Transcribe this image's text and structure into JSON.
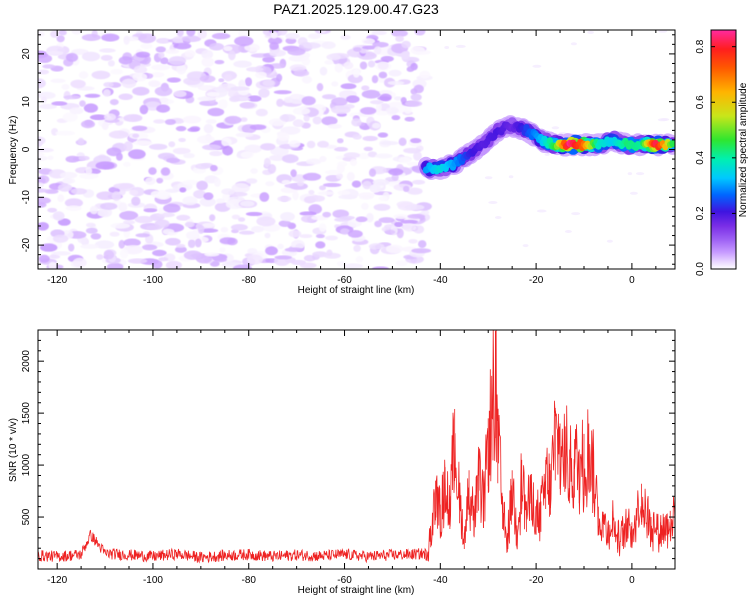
{
  "title": "PAZ1.2025.129.00.47.G23",
  "chart_data": [
    {
      "type": "heatmap",
      "title": "PAZ1.2025.129.00.47.G23",
      "xlabel": "Height of straight line (km)",
      "ylabel": "Frequency (Hz)",
      "xlim": [
        -124,
        9
      ],
      "ylim": [
        -25,
        25
      ],
      "x_ticks": [
        -120,
        -100,
        -80,
        -60,
        -40,
        -20,
        0
      ],
      "y_ticks": [
        -20,
        -10,
        0,
        10,
        20
      ],
      "colorbar": {
        "label": "Normalized spectral amplitude",
        "range": [
          0.0,
          0.86
        ],
        "ticks": [
          0.0,
          0.2,
          0.4,
          0.6,
          0.8
        ],
        "colormap": [
          "#ffffff",
          "#e9d6ff",
          "#c79bff",
          "#a064f5",
          "#7a2ee6",
          "#3f14e0",
          "#0066ff",
          "#00c8ff",
          "#00f0b0",
          "#2fe62f",
          "#c8e61a",
          "#ffb400",
          "#ff5a00",
          "#ff1e1e",
          "#ff2aa0"
        ]
      },
      "noise_region": {
        "x_range": [
          -124,
          -43
        ],
        "y_range": [
          -25,
          25
        ],
        "amplitude_range": [
          0.0,
          0.12
        ]
      },
      "signal_ridge": [
        {
          "x": -43,
          "freq": -4,
          "amp": 0.4
        },
        {
          "x": -40,
          "freq": -4,
          "amp": 0.46
        },
        {
          "x": -37,
          "freq": -3,
          "amp": 0.4
        },
        {
          "x": -34,
          "freq": -1,
          "amp": 0.32
        },
        {
          "x": -31,
          "freq": 1,
          "amp": 0.28
        },
        {
          "x": -28,
          "freq": 4,
          "amp": 0.3
        },
        {
          "x": -25,
          "freq": 5,
          "amp": 0.26
        },
        {
          "x": -22,
          "freq": 4,
          "amp": 0.34
        },
        {
          "x": -19,
          "freq": 2,
          "amp": 0.42
        },
        {
          "x": -16,
          "freq": 1,
          "amp": 0.55
        },
        {
          "x": -13,
          "freq": 1,
          "amp": 0.85
        },
        {
          "x": -10,
          "freq": 1,
          "amp": 0.72
        },
        {
          "x": -7,
          "freq": 1,
          "amp": 0.48
        },
        {
          "x": -4,
          "freq": 2,
          "amp": 0.44
        },
        {
          "x": -1,
          "freq": 1,
          "amp": 0.52
        },
        {
          "x": 2,
          "freq": 1,
          "amp": 0.5
        },
        {
          "x": 5,
          "freq": 1,
          "amp": 0.82
        },
        {
          "x": 9,
          "freq": 1,
          "amp": 0.5
        }
      ]
    },
    {
      "type": "line",
      "xlabel": "Height of straight line (km)",
      "ylabel": "SNR (10 * v/v)",
      "xlim": [
        -124,
        9
      ],
      "ylim": [
        0,
        2300
      ],
      "x_ticks": [
        -120,
        -100,
        -80,
        -60,
        -40,
        -20,
        0
      ],
      "y_ticks": [
        500,
        1000,
        1500,
        2000
      ],
      "grid": false,
      "series": [
        {
          "color": "#ee2222",
          "x": [
            -124,
            -120,
            -115,
            -113,
            -110,
            -105,
            -100,
            -95,
            -90,
            -85,
            -80,
            -75,
            -70,
            -65,
            -60,
            -55,
            -50,
            -46,
            -43,
            -42,
            -41,
            -40,
            -39,
            -38,
            -37,
            -36,
            -35,
            -34,
            -33,
            -32,
            -31,
            -30,
            -29,
            -28.5,
            -28,
            -27,
            -26,
            -25,
            -24,
            -23,
            -22,
            -21,
            -20,
            -19,
            -18,
            -17,
            -16,
            -15,
            -14,
            -13,
            -12,
            -11,
            -10,
            -9,
            -8,
            -7,
            -6,
            -5,
            -4,
            -3,
            -2,
            -1,
            0,
            2,
            4,
            6,
            8,
            9
          ],
          "values": [
            130,
            120,
            140,
            330,
            150,
            135,
            120,
            145,
            110,
            130,
            140,
            120,
            135,
            125,
            140,
            120,
            135,
            140,
            150,
            380,
            850,
            620,
            980,
            700,
            1540,
            800,
            350,
            950,
            580,
            1020,
            720,
            1450,
            1900,
            2290,
            1500,
            700,
            300,
            950,
            420,
            1050,
            650,
            850,
            600,
            650,
            1050,
            950,
            1550,
            1400,
            1350,
            1150,
            1250,
            1150,
            1300,
            1400,
            1150,
            600,
            550,
            450,
            560,
            350,
            400,
            480,
            450,
            820,
            500,
            450,
            560,
            620
          ]
        }
      ]
    }
  ]
}
